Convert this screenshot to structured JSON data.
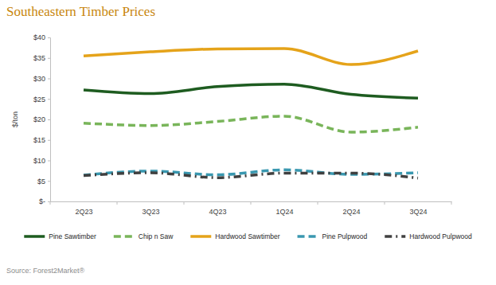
{
  "chart_data": {
    "type": "line",
    "title": "Southeastern Timber Prices",
    "y_label": "$/ton",
    "source": "Source: Forest2Market®",
    "categories": [
      "2Q23",
      "3Q23",
      "4Q23",
      "1Q24",
      "2Q24",
      "3Q24"
    ],
    "series": [
      {
        "name": "Pine Sawtimber",
        "color": "#1e5c20",
        "line_style": "solid",
        "values": [
          27.2,
          26.3,
          28.0,
          28.6,
          26.1,
          25.2
        ]
      },
      {
        "name": "Chip n Saw",
        "color": "#79b55a",
        "line_style": "dashed",
        "values": [
          19.1,
          18.5,
          19.5,
          20.8,
          16.9,
          18.1
        ]
      },
      {
        "name": "Hardwood Sawtimber",
        "color": "#e5a31a",
        "line_style": "solid",
        "values": [
          35.5,
          36.5,
          37.2,
          37.3,
          33.4,
          36.7
        ]
      },
      {
        "name": "Pine Pulpwood",
        "color": "#3a98b0",
        "line_style": "dashed",
        "values": [
          6.4,
          7.4,
          6.5,
          7.7,
          6.6,
          7.0
        ]
      },
      {
        "name": "Hardwood Pulpwood",
        "color": "#404040",
        "line_style": "dash-dot",
        "values": [
          6.3,
          7.0,
          5.8,
          6.9,
          6.9,
          5.7
        ]
      }
    ],
    "ylim": [
      0,
      40
    ],
    "yticks": [
      {
        "value": 0,
        "label": "$-"
      },
      {
        "value": 5,
        "label": "$5"
      },
      {
        "value": 10,
        "label": "$10"
      },
      {
        "value": 15,
        "label": "$15"
      },
      {
        "value": 20,
        "label": "$20"
      },
      {
        "value": 25,
        "label": "$25"
      },
      {
        "value": 30,
        "label": "$30"
      },
      {
        "value": 35,
        "label": "$35"
      },
      {
        "value": 40,
        "label": "$40"
      }
    ],
    "grid": false,
    "legend": "bottom"
  }
}
